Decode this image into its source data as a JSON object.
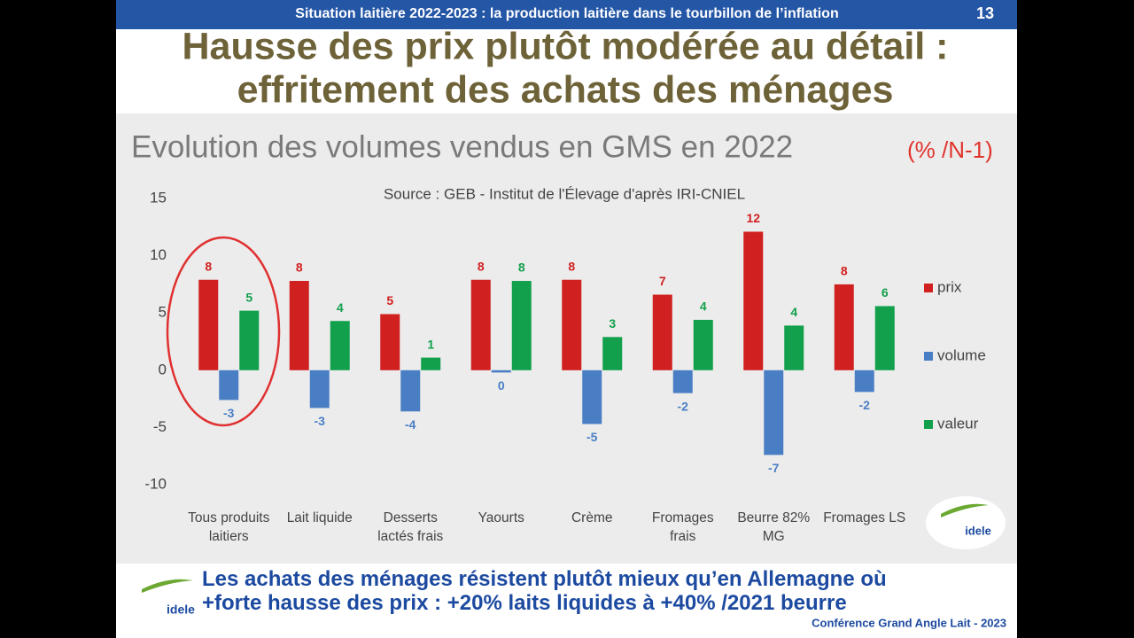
{
  "slide": {
    "header": "Situation laitière 2022-2023 : la production laitière dans le tourbillon de l’inflation",
    "page_number": "13",
    "title": [
      "Hausse des prix plutôt modérée au détail :",
      "effritement des achats des ménages"
    ],
    "footer": [
      "Les achats des ménages résistent plutôt mieux qu’en Allemagne où",
      "+forte hausse des prix : +20% laits liquides à +40% /2021 beurre"
    ],
    "credit": "Conférence Grand Angle Lait - 2023",
    "logo": "idele"
  },
  "chart_data": {
    "type": "bar",
    "title": "Evolution des volumes vendus en GMS en 2022",
    "subtitle": "(% /N-1)",
    "source": "Source : GEB - Institut de l'Élevage d'après IRI-CNIEL",
    "categories": [
      "Tous produits laitiers",
      "Lait liquide",
      "Desserts lactés frais",
      "Yaourts",
      "Crème",
      "Fromages frais",
      "Beurre 82% MG",
      "Fromages LS"
    ],
    "series": [
      {
        "name": "prix",
        "color": "#d0201f",
        "values": [
          7.9,
          7.8,
          4.9,
          7.9,
          7.9,
          6.6,
          12.1,
          7.5
        ],
        "value_labels": [
          "8",
          "8",
          "5",
          "8",
          "8",
          "7",
          "12",
          "8"
        ]
      },
      {
        "name": "volume",
        "color": "#4a7ec4",
        "values": [
          -2.6,
          -3.3,
          -3.6,
          -0.2,
          -4.7,
          -2.0,
          -7.4,
          -1.9
        ],
        "value_labels": [
          "-3",
          "-3",
          "-4",
          "0",
          "-5",
          "-2",
          "-7",
          "-2"
        ]
      },
      {
        "name": "valeur",
        "color": "#12a04c",
        "values": [
          5.2,
          4.3,
          1.1,
          7.8,
          2.9,
          4.4,
          3.9,
          5.6
        ],
        "value_labels": [
          "5",
          "4",
          "1",
          "8",
          "3",
          "4",
          "4",
          "6"
        ]
      }
    ],
    "ylim": [
      -10,
      15
    ],
    "yticks": [
      15,
      10,
      5,
      0,
      -5,
      -10
    ],
    "grid": false,
    "legend": "right"
  }
}
